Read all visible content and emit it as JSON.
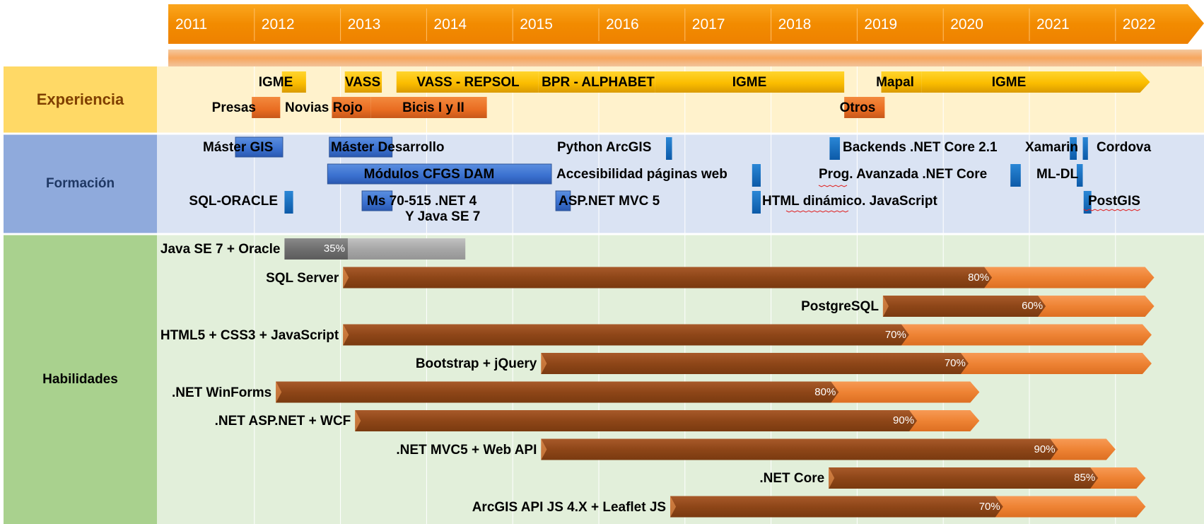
{
  "chart_data": {
    "type": "timeline",
    "years": [
      "2011",
      "2012",
      "2013",
      "2014",
      "2015",
      "2016",
      "2017",
      "2018",
      "2019",
      "2020",
      "2021",
      "2022"
    ],
    "sections": [
      {
        "name": "Experiencia",
        "color": "#ffd966",
        "bg": "#fff2cc",
        "text_color": "#7f3f00"
      },
      {
        "name": "Formación",
        "color": "#8faadc",
        "bg": "#dae3f3",
        "text_color": "#1f3864"
      },
      {
        "name": "Habilidades",
        "color": "#a9d18e",
        "bg": "#e2efda",
        "text_color": "#000000"
      }
    ],
    "experience": [
      {
        "label": "IGME",
        "start": 2012.32,
        "end": 2012.6,
        "row": 0,
        "color": "yellow"
      },
      {
        "label": "VASS",
        "start": 2013.05,
        "end": 2013.48,
        "row": 0,
        "color": "yellow"
      },
      {
        "label": "VASS - REPSOL",
        "start": 2013.65,
        "end": 2015.3,
        "row": 0,
        "color": "yellow"
      },
      {
        "label": "BPR - ALPHABET",
        "start": 2015.3,
        "end": 2016.65,
        "row": 0,
        "color": "yellow"
      },
      {
        "label": "IGME",
        "start": 2016.65,
        "end": 2018.85,
        "row": 0,
        "color": "yellow"
      },
      {
        "label": "Mapal",
        "start": 2019.28,
        "end": 2019.75,
        "row": 0,
        "color": "yellow"
      },
      {
        "label": "IGME",
        "start": 2019.75,
        "end": 2022.4,
        "row": 0,
        "color": "yellow",
        "arrow": true
      },
      {
        "label": "Presas",
        "start": 2011.97,
        "end": 2012.3,
        "row": 1,
        "color": "orange"
      },
      {
        "label": "Novias Rojo",
        "start": 2012.9,
        "end": 2013.35,
        "row": 1,
        "color": "orange"
      },
      {
        "label": "Bicis I y II",
        "start": 2013.35,
        "end": 2014.7,
        "row": 1,
        "color": "orange"
      },
      {
        "label": "Otros",
        "start": 2018.85,
        "end": 2019.32,
        "row": 1,
        "color": "orange"
      }
    ],
    "training": [
      {
        "label": "Máster GIS",
        "start": 2011.78,
        "end": 2012.33,
        "row": 0
      },
      {
        "label": "Máster Desarrollo",
        "start": 2012.87,
        "end": 2013.6,
        "row": 0
      },
      {
        "label": "Python ArcGIS",
        "start": 2016.78,
        "end": 2016.85,
        "row": 0
      },
      {
        "label": "Backends .NET Core 2.1",
        "start": 2018.68,
        "end": 2018.8,
        "row": 0
      },
      {
        "label": "Xamarin",
        "start": 2021.47,
        "end": 2021.55,
        "row": 0
      },
      {
        "label": "Cordova",
        "start": 2021.62,
        "end": 2021.68,
        "row": 0
      },
      {
        "label": "Módulos CFGS DAM",
        "start": 2012.85,
        "end": 2015.45,
        "row": 1
      },
      {
        "label": "Accesibilidad páginas web",
        "start": 2017.78,
        "end": 2017.88,
        "row": 1
      },
      {
        "label": "Prog. Avanzada .NET Core",
        "start": 2020.78,
        "end": 2020.9,
        "row": 1
      },
      {
        "label": "ML-DL",
        "start": 2021.55,
        "end": 2021.62,
        "row": 1
      },
      {
        "label": "SQL-ORACLE",
        "start": 2012.35,
        "end": 2012.45,
        "row": 2
      },
      {
        "label": "Ms 70-515 .NET 4",
        "label2": "Y Java SE 7",
        "start": 2013.25,
        "end": 2013.6,
        "row": 2
      },
      {
        "label": "ASP.NET MVC 5",
        "start": 2015.5,
        "end": 2015.67,
        "row": 2
      },
      {
        "label": "HTML dinámico. JavaScript",
        "start": 2017.78,
        "end": 2017.88,
        "row": 2
      },
      {
        "label": "PostGIS",
        "start": 2021.63,
        "end": 2021.72,
        "row": 2
      }
    ],
    "skills": [
      {
        "label": "Java SE 7 + Oracle",
        "start": 2012.35,
        "end": 2014.45,
        "percent": 35,
        "percent_label": "35%",
        "style": "gray"
      },
      {
        "label": "SQL Server",
        "start": 2013.03,
        "end": 2022.45,
        "percent": 80,
        "percent_label": "80%"
      },
      {
        "label": "PostgreSQL",
        "start": 2019.3,
        "end": 2022.45,
        "percent": 60,
        "percent_label": "60%"
      },
      {
        "label": "HTML5 + CSS3 + JavaScript",
        "start": 2013.03,
        "end": 2022.42,
        "percent": 70,
        "percent_label": "70%"
      },
      {
        "label": "Bootstrap + jQuery",
        "start": 2015.33,
        "end": 2022.42,
        "percent": 70,
        "percent_label": "70%"
      },
      {
        "label": ".NET WinForms",
        "start": 2012.25,
        "end": 2020.42,
        "percent": 80,
        "percent_label": "80%"
      },
      {
        "label": ".NET ASP.NET + WCF",
        "start": 2013.17,
        "end": 2020.42,
        "percent": 90,
        "percent_label": "90%"
      },
      {
        "label": ".NET MVC5 + Web API",
        "start": 2015.33,
        "end": 2022.0,
        "percent": 90,
        "percent_label": "90%"
      },
      {
        "label": ".NET Core",
        "start": 2018.67,
        "end": 2022.35,
        "percent": 85,
        "percent_label": "85%"
      },
      {
        "label": "ArcGIS API JS 4.X + Leaflet JS",
        "start": 2016.83,
        "end": 2022.35,
        "percent": 70,
        "percent_label": "70%"
      }
    ]
  }
}
